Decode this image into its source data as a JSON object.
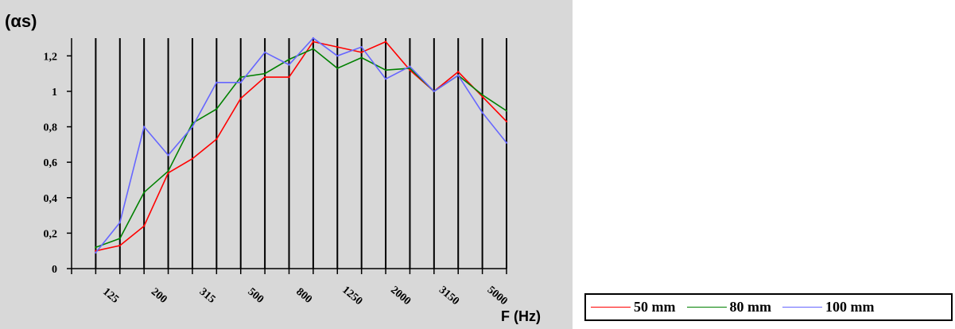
{
  "chart_data": {
    "type": "line",
    "ylabel": "(αs)",
    "xlabel": "F (Hz)",
    "ylim": [
      0,
      1.3
    ],
    "yticks": [
      "0",
      "0,2",
      "0,4",
      "0,6",
      "0,8",
      "1",
      "1,2"
    ],
    "ytick_values": [
      0,
      0.2,
      0.4,
      0.6,
      0.8,
      1.0,
      1.2
    ],
    "x": [
      "100",
      "125",
      "160",
      "200",
      "250",
      "315",
      "400",
      "500",
      "630",
      "800",
      "1000",
      "1250",
      "1600",
      "2000",
      "2500",
      "3150",
      "4000",
      "5000"
    ],
    "xtick_labels": [
      "125",
      "200",
      "315",
      "500",
      "800",
      "1250",
      "2000",
      "3150",
      "5000"
    ],
    "grid": "vertical",
    "legend_position": "bottom-right, outside",
    "series": [
      {
        "name": "50 mm",
        "color": "#ff0000",
        "values": [
          0.1,
          0.13,
          0.24,
          0.54,
          0.62,
          0.73,
          0.96,
          1.08,
          1.08,
          1.28,
          1.25,
          1.22,
          1.28,
          1.12,
          1.0,
          1.11,
          0.97,
          0.83
        ]
      },
      {
        "name": "80 mm",
        "color": "#008000",
        "values": [
          0.12,
          0.17,
          0.43,
          0.55,
          0.82,
          0.9,
          1.08,
          1.1,
          1.18,
          1.24,
          1.13,
          1.19,
          1.12,
          1.13,
          1.0,
          1.09,
          0.98,
          0.89
        ]
      },
      {
        "name": "100 mm",
        "color": "#6666ff",
        "values": [
          0.09,
          0.26,
          0.8,
          0.64,
          0.8,
          1.05,
          1.05,
          1.22,
          1.15,
          1.3,
          1.2,
          1.25,
          1.07,
          1.14,
          1.0,
          1.09,
          0.88,
          0.71
        ]
      }
    ]
  }
}
